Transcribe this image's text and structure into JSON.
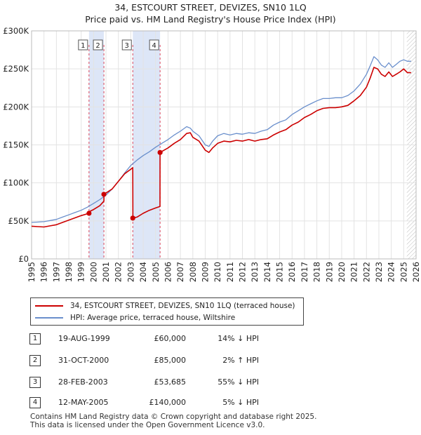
{
  "title_line1": "34, ESTCOURT STREET, DEVIZES, SN10 1LQ",
  "title_line2": "Price paid vs. HM Land Registry's House Price Index (HPI)",
  "chart_data": {
    "type": "line",
    "ylim": [
      0,
      300000
    ],
    "xlim": [
      1995,
      2026
    ],
    "yticks": [
      0,
      50000,
      100000,
      150000,
      200000,
      250000,
      300000
    ],
    "ytick_labels": [
      "£0",
      "£50K",
      "£100K",
      "£150K",
      "£200K",
      "£250K",
      "£300K"
    ],
    "xticks": [
      "1995",
      "1996",
      "1997",
      "1998",
      "1999",
      "2000",
      "2001",
      "2002",
      "2003",
      "2004",
      "2005",
      "2006",
      "2007",
      "2008",
      "2009",
      "2010",
      "2011",
      "2012",
      "2013",
      "2014",
      "2015",
      "2016",
      "2017",
      "2018",
      "2019",
      "2020",
      "2021",
      "2022",
      "2023",
      "2024",
      "2025",
      "2026"
    ],
    "colors": {
      "property": "#cc0000",
      "hpi": "#6a8fcc",
      "band": "#dde6f7",
      "marker_line": "#d9455a"
    },
    "series": [
      {
        "name": "34, ESTCOURT STREET, DEVIZES, SN10 1LQ (terraced house)",
        "x": [
          1995.0,
          1995.5,
          1996.0,
          1996.5,
          1997.0,
          1997.5,
          1998.0,
          1998.5,
          1999.0,
          1999.63,
          1999.64,
          2000.0,
          2000.5,
          2000.83,
          2000.84,
          2001.5,
          2002.0,
          2002.5,
          2003.0,
          2003.16,
          2003.17,
          2003.5,
          2004.0,
          2004.5,
          2005.0,
          2005.35,
          2005.36,
          2006.0,
          2006.5,
          2007.0,
          2007.5,
          2007.8,
          2008.0,
          2008.5,
          2009.0,
          2009.3,
          2009.6,
          2010.0,
          2010.5,
          2011.0,
          2011.5,
          2012.0,
          2012.5,
          2013.0,
          2013.5,
          2014.0,
          2014.5,
          2015.0,
          2015.5,
          2016.0,
          2016.5,
          2017.0,
          2017.5,
          2018.0,
          2018.5,
          2019.0,
          2019.5,
          2020.0,
          2020.5,
          2021.0,
          2021.5,
          2022.0,
          2022.3,
          2022.6,
          2022.9,
          2023.2,
          2023.5,
          2023.8,
          2024.1,
          2024.4,
          2024.7,
          2025.0,
          2025.3,
          2025.6
        ],
        "values": [
          43000,
          42500,
          42000,
          43500,
          45000,
          48000,
          51000,
          54000,
          57000,
          60000,
          62000,
          65000,
          70000,
          76000,
          85000,
          92000,
          102000,
          112000,
          118000,
          120000,
          53685,
          55000,
          60000,
          64000,
          67000,
          69000,
          140000,
          146000,
          152000,
          157000,
          165000,
          166000,
          160000,
          155000,
          143000,
          140000,
          146000,
          152000,
          155000,
          154000,
          156000,
          155000,
          157000,
          155000,
          157000,
          158000,
          163000,
          167000,
          170000,
          176000,
          180000,
          186000,
          190000,
          195000,
          198000,
          199000,
          199000,
          200000,
          202000,
          208000,
          215000,
          226000,
          238000,
          252000,
          250000,
          243000,
          240000,
          246000,
          240000,
          243000,
          246000,
          250000,
          245000,
          245000
        ]
      },
      {
        "name": "HPI: Average price, terraced house, Wiltshire",
        "x": [
          1995.0,
          1995.5,
          1996.0,
          1996.5,
          1997.0,
          1997.5,
          1998.0,
          1998.5,
          1999.0,
          1999.5,
          2000.0,
          2000.5,
          2001.0,
          2001.5,
          2002.0,
          2002.5,
          2003.0,
          2003.5,
          2004.0,
          2004.5,
          2005.0,
          2005.5,
          2006.0,
          2006.5,
          2007.0,
          2007.5,
          2007.8,
          2008.0,
          2008.5,
          2009.0,
          2009.3,
          2009.6,
          2010.0,
          2010.5,
          2011.0,
          2011.5,
          2012.0,
          2012.5,
          2013.0,
          2013.5,
          2014.0,
          2014.5,
          2015.0,
          2015.5,
          2016.0,
          2016.5,
          2017.0,
          2017.5,
          2018.0,
          2018.5,
          2019.0,
          2019.5,
          2020.0,
          2020.5,
          2021.0,
          2021.5,
          2022.0,
          2022.3,
          2022.6,
          2022.9,
          2023.2,
          2023.5,
          2023.8,
          2024.1,
          2024.4,
          2024.7,
          2025.0,
          2025.3,
          2025.6
        ],
        "values": [
          48000,
          48500,
          49000,
          50500,
          52000,
          55000,
          58000,
          61000,
          64000,
          68000,
          73000,
          78000,
          84000,
          92000,
          102000,
          113000,
          123000,
          130000,
          136000,
          141000,
          147000,
          152000,
          157000,
          163000,
          168000,
          174000,
          172000,
          168000,
          162000,
          150000,
          148000,
          155000,
          162000,
          165000,
          163000,
          165000,
          164000,
          166000,
          165000,
          168000,
          170000,
          176000,
          180000,
          183000,
          190000,
          195000,
          200000,
          204000,
          208000,
          211000,
          211000,
          212000,
          212000,
          215000,
          221000,
          230000,
          243000,
          254000,
          266000,
          262000,
          255000,
          252000,
          258000,
          252000,
          256000,
          260000,
          262000,
          260000,
          260000
        ]
      }
    ],
    "sales": [
      {
        "label": "1",
        "x": 1999.63,
        "value": 60000,
        "date": "19-AUG-1999",
        "price": "£60,000",
        "hpi": "14% ↓ HPI"
      },
      {
        "label": "2",
        "x": 2000.83,
        "value": 85000,
        "date": "31-OCT-2000",
        "price": "£85,000",
        "hpi": "2% ↑ HPI"
      },
      {
        "label": "3",
        "x": 2003.16,
        "value": 53685,
        "date": "28-FEB-2003",
        "price": "£53,685",
        "hpi": "55% ↓ HPI"
      },
      {
        "label": "4",
        "x": 2005.36,
        "value": 140000,
        "date": "12-MAY-2005",
        "price": "£140,000",
        "hpi": "5% ↓ HPI"
      }
    ],
    "bands": [
      [
        1999.63,
        2000.83
      ],
      [
        2003.16,
        2005.36
      ]
    ],
    "hatch_from": 2025.25
  },
  "legend": {
    "property": "34, ESTCOURT STREET, DEVIZES, SN10 1LQ (terraced house)",
    "hpi": "HPI: Average price, terraced house, Wiltshire"
  },
  "footer_line1": "Contains HM Land Registry data © Crown copyright and database right 2025.",
  "footer_line2": "This data is licensed under the Open Government Licence v3.0."
}
